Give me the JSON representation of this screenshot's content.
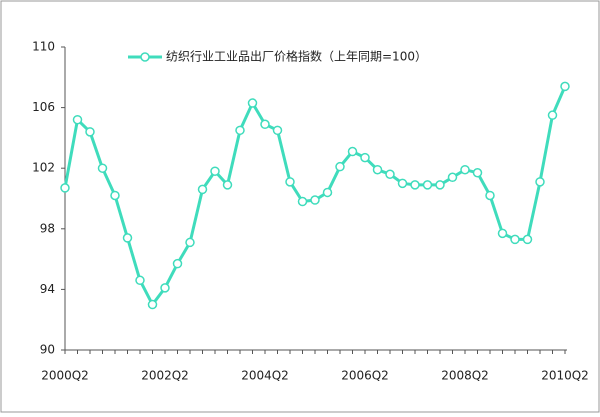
{
  "chart_data": {
    "type": "line",
    "categories": [
      "2000Q2",
      null,
      null,
      null,
      null,
      null,
      null,
      null,
      "2002Q2",
      null,
      null,
      null,
      null,
      null,
      null,
      null,
      "2004Q2",
      null,
      null,
      null,
      null,
      null,
      null,
      null,
      "2006Q2",
      null,
      null,
      null,
      null,
      null,
      null,
      null,
      "2008Q2",
      null,
      null,
      null,
      null,
      null,
      null,
      null,
      "2010Q2"
    ],
    "series": [
      {
        "name": "纺织行业工业品出厂价格指数（上年同期=100）",
        "color": "#3fdcbc",
        "values": [
          100.7,
          105.2,
          104.4,
          102.0,
          100.2,
          97.4,
          94.6,
          93.0,
          94.1,
          95.7,
          97.1,
          100.6,
          101.8,
          100.9,
          104.5,
          106.3,
          104.9,
          104.5,
          101.1,
          99.8,
          99.9,
          100.4,
          102.1,
          103.1,
          102.7,
          101.9,
          101.6,
          101.0,
          100.9,
          100.9,
          100.9,
          101.4,
          101.9,
          101.7,
          100.2,
          97.7,
          97.3,
          97.3,
          101.1,
          105.5,
          107.4
        ]
      }
    ],
    "ylim": [
      90,
      110
    ],
    "yticks": [
      90,
      94,
      98,
      102,
      106,
      110
    ]
  }
}
